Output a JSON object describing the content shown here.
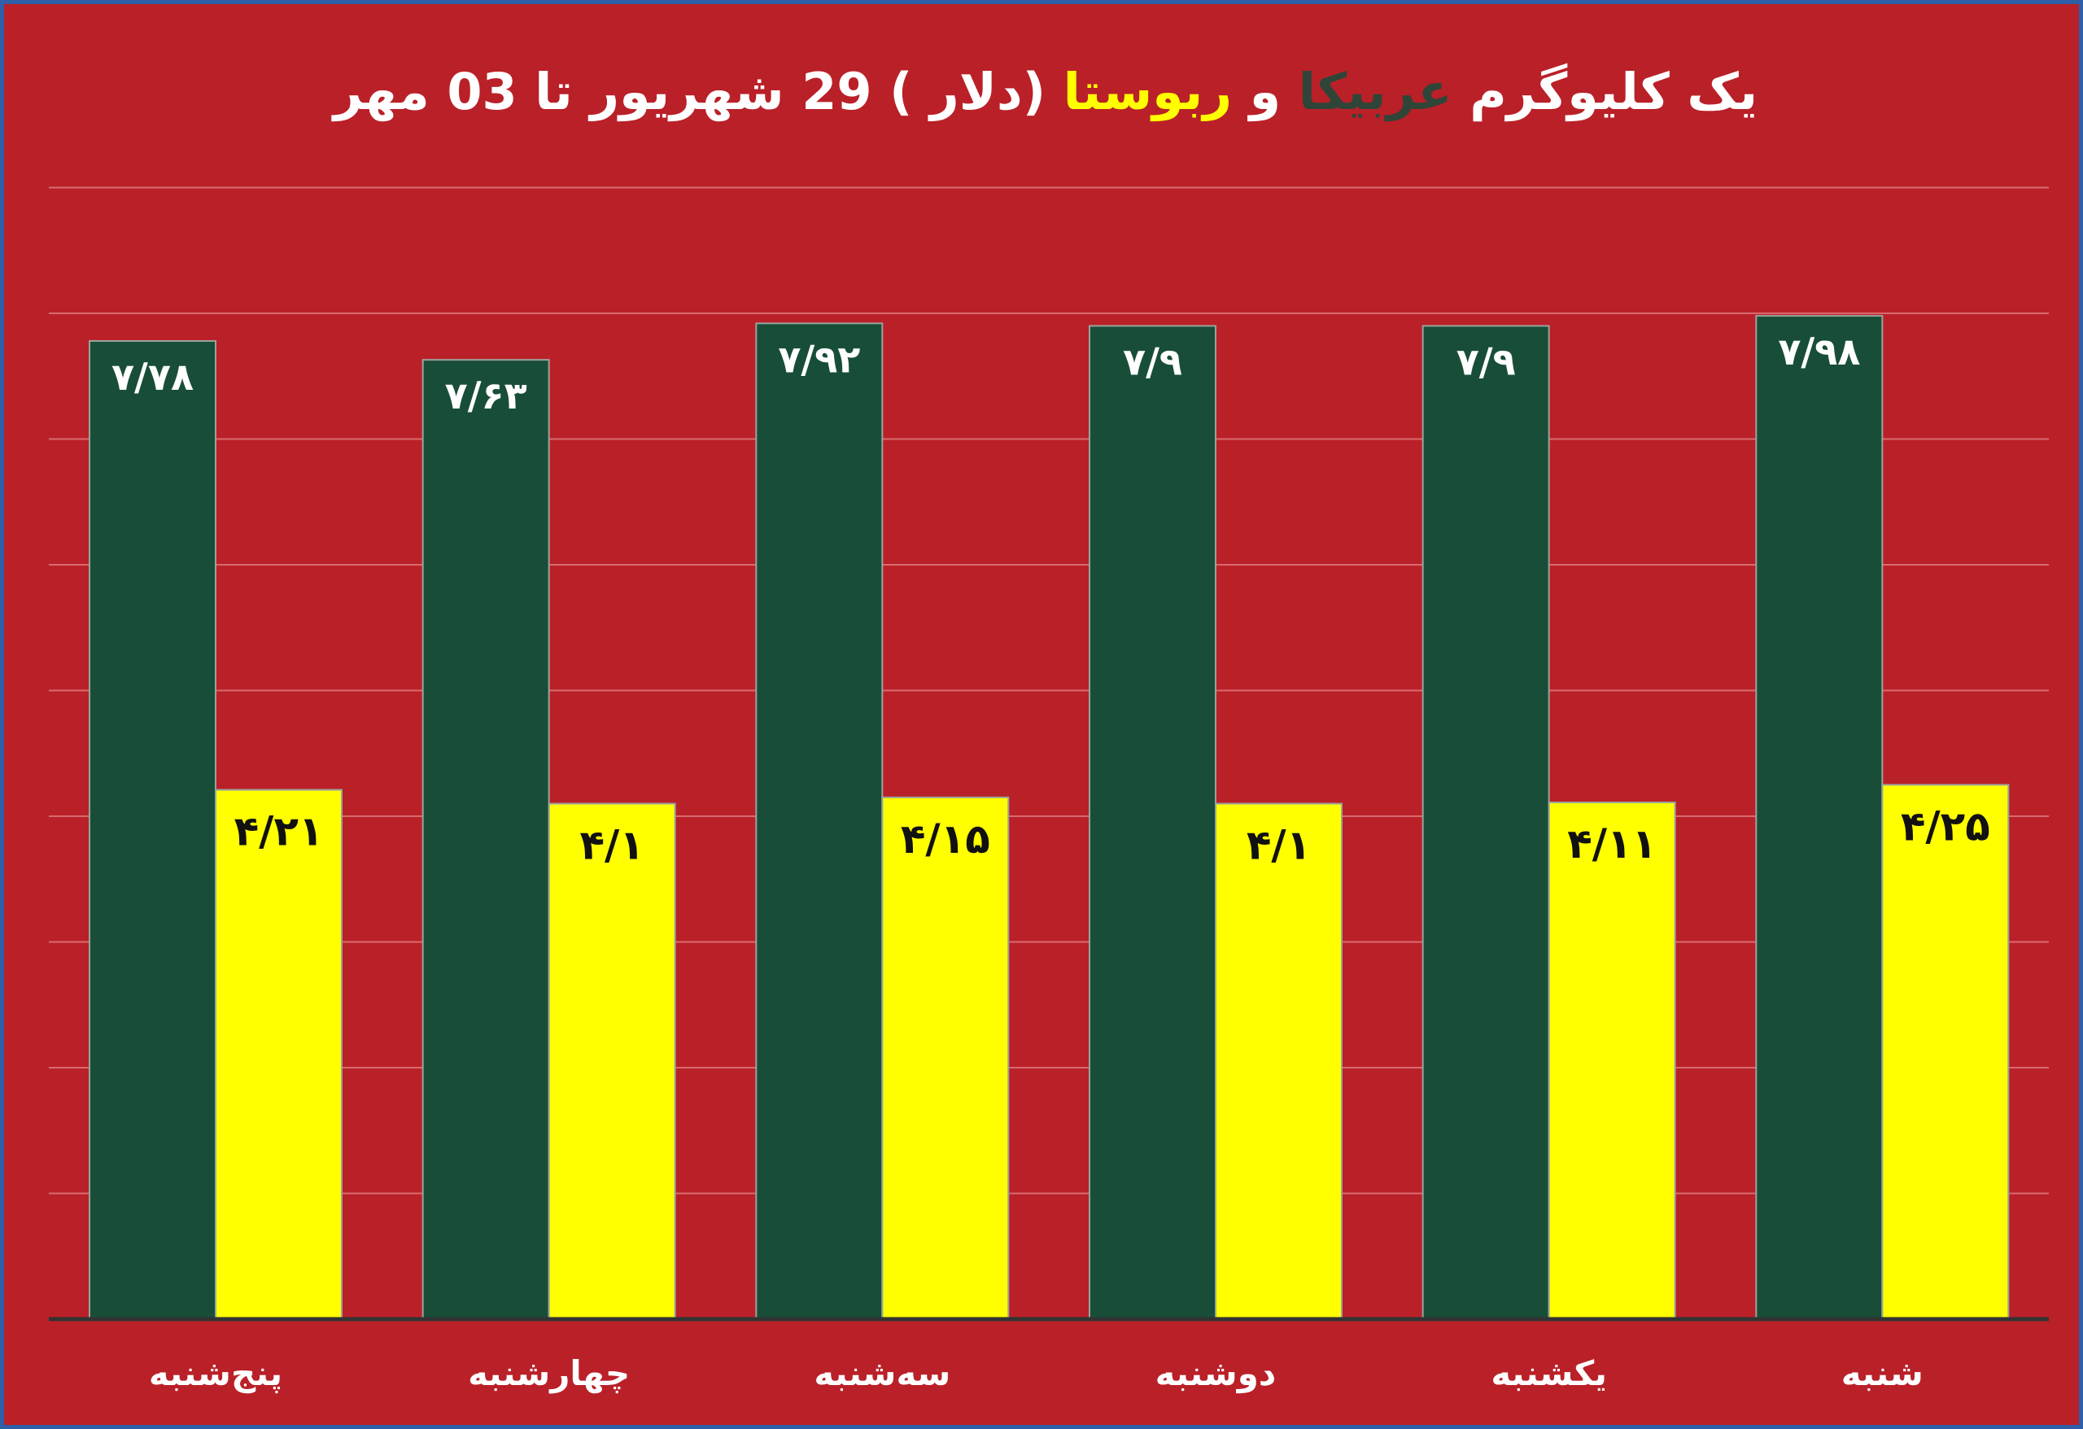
{
  "title": {
    "prefix": "یک کلیوگرم ",
    "arabica": "عربیکا",
    "conj": " و ",
    "robusta": "ربوستا",
    "suffix": " (دلار ) 29 شهریور  تا 03 مهر"
  },
  "colors": {
    "background": "#ba2028",
    "arabica": "#184e38",
    "robusta": "#ffff00",
    "title_text": "#ffffff",
    "title_arabica": "#2f4538",
    "gridline": "#d86b6f",
    "axis": "#333333"
  },
  "chart_data": {
    "type": "bar",
    "categories": [
      "پنج‌شنبه",
      "چهارشنبه",
      "سه‌شنبه",
      "دوشنبه",
      "یکشنبه",
      "شنبه"
    ],
    "series": [
      {
        "name": "عربیکا",
        "values": [
          7.78,
          7.63,
          7.92,
          7.9,
          7.9,
          7.98
        ],
        "labels": [
          "۷/۷۸",
          "۷/۶۳",
          "۷/۹۲",
          "۷/۹",
          "۷/۹",
          "۷/۹۸"
        ]
      },
      {
        "name": "ربوستا",
        "values": [
          4.21,
          4.1,
          4.15,
          4.1,
          4.11,
          4.25
        ],
        "labels": [
          "۴/۲۱",
          "۴/۱",
          "۴/۱۵",
          "۴/۱",
          "۴/۱۱",
          "۴/۲۵"
        ]
      }
    ],
    "ylim": [
      0,
      9
    ],
    "grid": true,
    "legend": "none"
  }
}
